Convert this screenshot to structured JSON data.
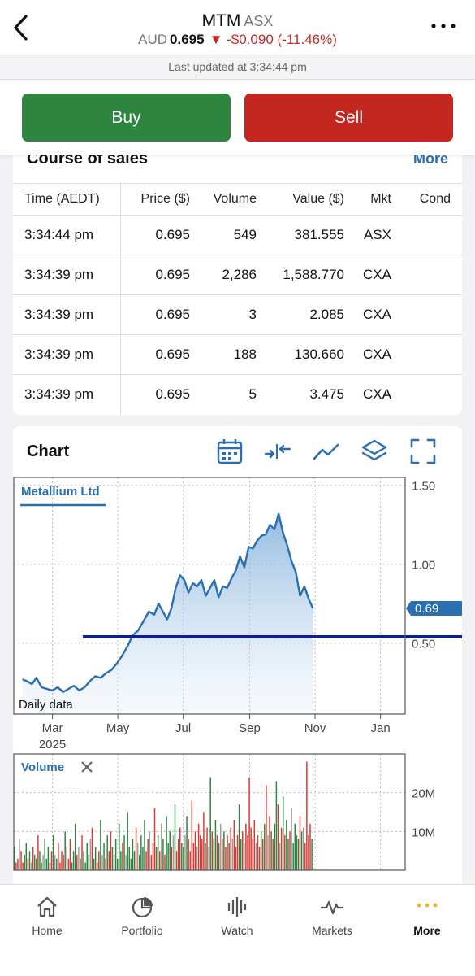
{
  "header": {
    "symbol": "MTM",
    "exchange": "ASX",
    "currency": "AUD",
    "price": "0.695",
    "change": "-$0.090 (-11.46%)",
    "change_arrow": "▼",
    "last_updated": "Last updated at 3:34:44 pm"
  },
  "trade": {
    "buy_label": "Buy",
    "sell_label": "Sell"
  },
  "course_of_sales": {
    "title": "Course of sales",
    "more_label": "More",
    "columns": [
      "Time (AEDT)",
      "Price ($)",
      "Volume",
      "Value ($)",
      "Mkt",
      "Cond"
    ],
    "rows": [
      [
        "3:34:44 pm",
        "0.695",
        "549",
        "381.555",
        "ASX",
        ""
      ],
      [
        "3:34:39 pm",
        "0.695",
        "2,286",
        "1,588.770",
        "CXA",
        ""
      ],
      [
        "3:34:39 pm",
        "0.695",
        "3",
        "2.085",
        "CXA",
        ""
      ],
      [
        "3:34:39 pm",
        "0.695",
        "188",
        "130.660",
        "CXA",
        ""
      ],
      [
        "3:34:39 pm",
        "0.695",
        "5",
        "3.475",
        "CXA",
        ""
      ]
    ]
  },
  "chart": {
    "title": "Chart",
    "tools": [
      "calendar-icon",
      "compare-icon",
      "indicator-line-icon",
      "layers-icon",
      "fullscreen-icon"
    ],
    "accent": "#2a6fb0"
  },
  "chart_data": [
    {
      "type": "area",
      "legend": "Metallium Ltd",
      "annotation": "Daily data",
      "current_value_label": "0.69",
      "ylim": [
        0.05,
        1.55
      ],
      "y_ticks": [
        1.5,
        1.0,
        0.5
      ],
      "y_tick_labels": [
        "1.50",
        "1.00",
        "0.50"
      ],
      "x_tick_labels": [
        "Mar\n2025",
        "May",
        "Jul",
        "Sep",
        "Nov",
        "Jan"
      ],
      "horizontal_line": 0.54,
      "series": [
        {
          "x": [
            "2025-02-01",
            "2025-02-05",
            "2025-02-10",
            "2025-02-14",
            "2025-02-19",
            "2025-02-24",
            "2025-03-01",
            "2025-03-06",
            "2025-03-11",
            "2025-03-16",
            "2025-03-21",
            "2025-03-26",
            "2025-03-31",
            "2025-04-05",
            "2025-04-10",
            "2025-04-15",
            "2025-04-20",
            "2025-04-25",
            "2025-04-30",
            "2025-05-05",
            "2025-05-10",
            "2025-05-15",
            "2025-05-20",
            "2025-05-25",
            "2025-05-30",
            "2025-06-04",
            "2025-06-08",
            "2025-06-12",
            "2025-06-16",
            "2025-06-20",
            "2025-06-24",
            "2025-06-28",
            "2025-07-02",
            "2025-07-06",
            "2025-07-10",
            "2025-07-14",
            "2025-07-18",
            "2025-07-22",
            "2025-07-26",
            "2025-07-30",
            "2025-08-03",
            "2025-08-07",
            "2025-08-11",
            "2025-08-15",
            "2025-08-19",
            "2025-08-23",
            "2025-08-27",
            "2025-08-31",
            "2025-09-04",
            "2025-09-08",
            "2025-09-12",
            "2025-09-16",
            "2025-09-20",
            "2025-09-24",
            "2025-09-28",
            "2025-10-02",
            "2025-10-06",
            "2025-10-10",
            "2025-10-14",
            "2025-10-18",
            "2025-10-22",
            "2025-10-26",
            "2025-10-30"
          ],
          "y": [
            0.27,
            0.26,
            0.24,
            0.28,
            0.22,
            0.21,
            0.2,
            0.22,
            0.19,
            0.21,
            0.23,
            0.2,
            0.22,
            0.26,
            0.29,
            0.28,
            0.31,
            0.33,
            0.37,
            0.42,
            0.48,
            0.55,
            0.58,
            0.64,
            0.7,
            0.68,
            0.75,
            0.7,
            0.65,
            0.72,
            0.85,
            0.93,
            0.9,
            0.82,
            0.88,
            0.86,
            0.9,
            0.8,
            0.85,
            0.9,
            0.79,
            0.86,
            0.85,
            0.91,
            0.96,
            1.05,
            0.98,
            1.11,
            1.1,
            1.15,
            1.18,
            1.19,
            1.25,
            1.22,
            1.32,
            1.2,
            1.12,
            1.02,
            0.95,
            0.8,
            0.86,
            0.78,
            0.72
          ]
        }
      ]
    },
    {
      "type": "bar",
      "legend": "Volume",
      "y_tick_labels": [
        "20M",
        "10M"
      ],
      "y_ticks": [
        20,
        10
      ],
      "ylim": [
        0,
        30
      ],
      "values_note": "daily volume in millions; green=up, red=down, grey=flat",
      "values": [
        6,
        2,
        3,
        8,
        5,
        2,
        4,
        7,
        3,
        5,
        2,
        6,
        4,
        3,
        9,
        5,
        2,
        4,
        8,
        3,
        6,
        2,
        5,
        9,
        4,
        3,
        7,
        2,
        5,
        4,
        10,
        6,
        3,
        8,
        2,
        5,
        12,
        4,
        6,
        3,
        9,
        5,
        2,
        7,
        4,
        8,
        11,
        3,
        6,
        2,
        5,
        13,
        4,
        7,
        3,
        9,
        5,
        10,
        6,
        4,
        8,
        3,
        12,
        5,
        7,
        9,
        4,
        15,
        6,
        3,
        8,
        5,
        11,
        7,
        4,
        9,
        6,
        13,
        5,
        8,
        10,
        4,
        7,
        16,
        6,
        9,
        5,
        12,
        8,
        4,
        14,
        7,
        10,
        6,
        9,
        17,
        5,
        8,
        11,
        7,
        6,
        9,
        14,
        8,
        5,
        18,
        7,
        10,
        6,
        12,
        9,
        8,
        15,
        7,
        11,
        6,
        24,
        10,
        8,
        13,
        9,
        7,
        12,
        8,
        10,
        6,
        9,
        7,
        11,
        8,
        13,
        6,
        9,
        17,
        8,
        10,
        7,
        12,
        9,
        24,
        11,
        8,
        13,
        7,
        9,
        6,
        10,
        8,
        12,
        22,
        9,
        14,
        10,
        8,
        12,
        23,
        17,
        7,
        11,
        19,
        9,
        13,
        8,
        10,
        16,
        7,
        12,
        9,
        8,
        14,
        10,
        11,
        7,
        28,
        9,
        12,
        8
      ]
    }
  ],
  "bottom_nav": {
    "items": [
      {
        "label": "Home",
        "icon": "home-icon"
      },
      {
        "label": "Portfolio",
        "icon": "portfolio-icon"
      },
      {
        "label": "Watch",
        "icon": "watch-icon"
      },
      {
        "label": "Markets",
        "icon": "markets-icon"
      },
      {
        "label": "More",
        "icon": "more-dots-icon"
      }
    ]
  }
}
